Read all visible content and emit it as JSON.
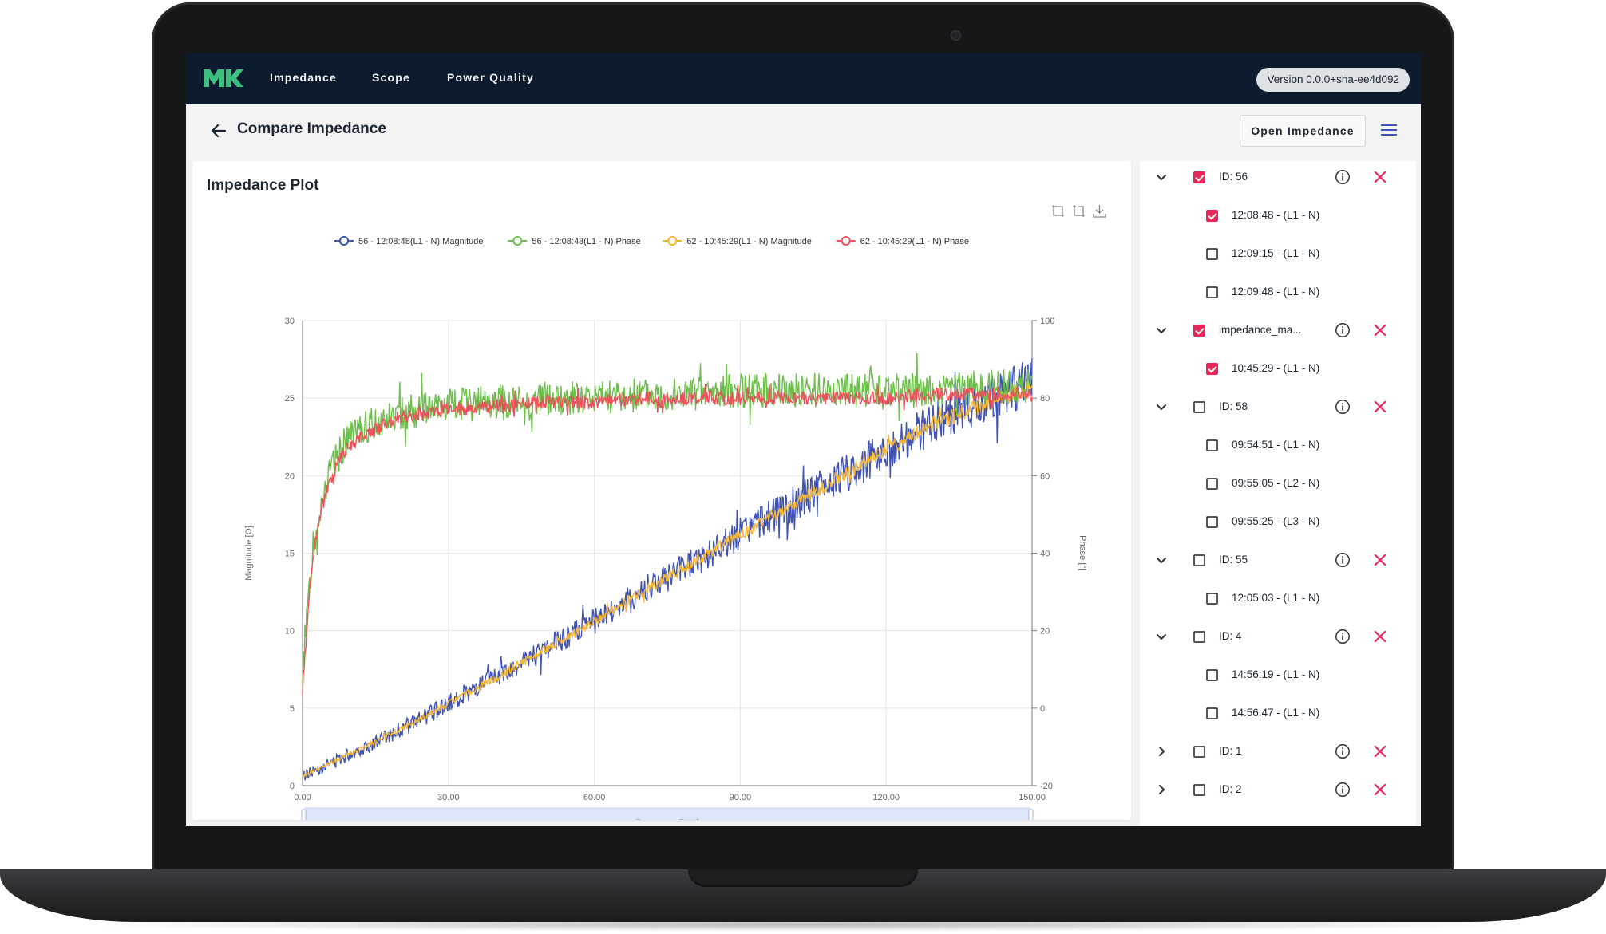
{
  "nav": {
    "items": [
      "Impedance",
      "Scope",
      "Power Quality"
    ],
    "version": "Version 0.0.0+sha-ee4d092"
  },
  "header": {
    "title": "Compare Impedance",
    "open_button": "Open Impedance"
  },
  "plot": {
    "title": "Impedance Plot"
  },
  "sidebar": {
    "groups": [
      {
        "label": "ID: 56",
        "checked": true,
        "expanded": true,
        "children": [
          {
            "label": "12:08:48 - (L1 - N)",
            "checked": true
          },
          {
            "label": "12:09:15 - (L1 - N)",
            "checked": false
          },
          {
            "label": "12:09:48 - (L1 - N)",
            "checked": false
          }
        ]
      },
      {
        "label": "impedance_ma...",
        "checked": true,
        "expanded": true,
        "children": [
          {
            "label": "10:45:29 - (L1 - N)",
            "checked": true
          }
        ]
      },
      {
        "label": "ID: 58",
        "checked": false,
        "expanded": true,
        "children": [
          {
            "label": "09:54:51 - (L1 - N)",
            "checked": false
          },
          {
            "label": "09:55:05 - (L2 - N)",
            "checked": false
          },
          {
            "label": "09:55:25 - (L3 - N)",
            "checked": false
          }
        ]
      },
      {
        "label": "ID: 55",
        "checked": false,
        "expanded": true,
        "children": [
          {
            "label": "12:05:03 - (L1 - N)",
            "checked": false
          }
        ]
      },
      {
        "label": "ID: 4",
        "checked": false,
        "expanded": true,
        "children": [
          {
            "label": "14:56:19 - (L1 - N)",
            "checked": false
          },
          {
            "label": "14:56:47 - (L1 - N)",
            "checked": false
          }
        ]
      },
      {
        "label": "ID: 1",
        "checked": false,
        "expanded": false,
        "children": []
      },
      {
        "label": "ID: 2",
        "checked": false,
        "expanded": false,
        "children": []
      }
    ]
  },
  "colors": {
    "nav_bg": "#0d1b2e",
    "accent": "#e8265a",
    "logo": "#3fbf7f",
    "series_blue": "#3f51b5",
    "series_green": "#6cc04a",
    "series_yellow": "#f5b731",
    "series_red": "#ef4e5a"
  },
  "chart_data": {
    "type": "line",
    "legend_position": "top",
    "xlabel": "Frequency [kHz]",
    "ylabel_left": "Magnitude [Ω]",
    "ylabel_right": "Phase [°]",
    "xlim": [
      0,
      150
    ],
    "ylim_left": [
      0,
      30
    ],
    "ylim_right": [
      -20,
      100
    ],
    "x_ticks": [
      "0.00",
      "30.00",
      "60.00",
      "90.00",
      "120.00",
      "150.00"
    ],
    "y_left_ticks": [
      "0",
      "5",
      "10",
      "15",
      "20",
      "25",
      "30"
    ],
    "y_right_ticks": [
      "-20",
      "0",
      "20",
      "40",
      "60",
      "80",
      "100"
    ],
    "grid": true,
    "x": [
      0,
      2,
      4,
      6,
      8,
      10,
      15,
      20,
      25,
      30,
      40,
      50,
      60,
      70,
      80,
      90,
      100,
      110,
      120,
      130,
      140,
      150
    ],
    "series": [
      {
        "name": "56 - 12:08:48(L1 - N) Magnitude",
        "axis": "left",
        "color": "#3f51b5",
        "noise": 1.2,
        "values": [
          0.6,
          0.9,
          1.2,
          1.5,
          1.8,
          2.1,
          2.8,
          3.6,
          4.4,
          5.3,
          7.0,
          8.8,
          10.6,
          12.5,
          14.3,
          16.2,
          18.0,
          19.8,
          21.6,
          23.4,
          24.8,
          26.2
        ]
      },
      {
        "name": "56 - 12:08:48(L1 - N) Phase",
        "axis": "right",
        "color": "#6cc04a",
        "noise": 4.5,
        "values": [
          10,
          40,
          55,
          62,
          67,
          70,
          74,
          76,
          77,
          78,
          79,
          80,
          80,
          81,
          81,
          82,
          82,
          82,
          82,
          82,
          83,
          83
        ]
      },
      {
        "name": "62 - 10:45:29(L1 - N) Magnitude",
        "axis": "left",
        "color": "#f5b731",
        "noise": 0.45,
        "values": [
          0.6,
          0.9,
          1.2,
          1.5,
          1.8,
          2.1,
          2.8,
          3.6,
          4.4,
          5.3,
          7.0,
          8.8,
          10.6,
          12.5,
          14.3,
          16.2,
          18.0,
          19.8,
          21.6,
          23.4,
          24.6,
          25.8
        ]
      },
      {
        "name": "62 - 10:45:29(L1 - N) Phase",
        "axis": "right",
        "color": "#ef4e5a",
        "noise": 1.8,
        "values": [
          5,
          38,
          52,
          60,
          65,
          68,
          72,
          75,
          76,
          77,
          78,
          79,
          79,
          80,
          80,
          80,
          80,
          80,
          80,
          81,
          81,
          81
        ]
      }
    ]
  }
}
